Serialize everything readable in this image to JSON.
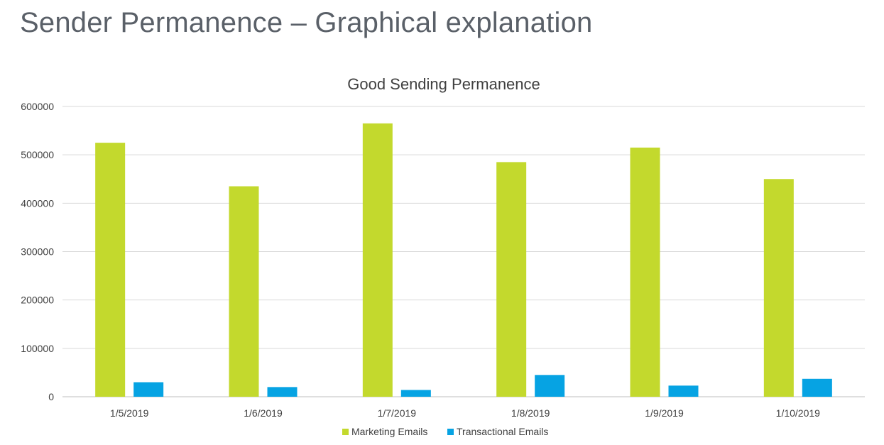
{
  "slide": {
    "title": "Sender Permanence – Graphical explanation"
  },
  "chart_data": {
    "type": "bar",
    "title": "Good Sending Permanence",
    "categories": [
      "1/5/2019",
      "1/6/2019",
      "1/7/2019",
      "1/8/2019",
      "1/9/2019",
      "1/10/2019"
    ],
    "series": [
      {
        "name": "Marketing Emails",
        "color": "#c3d92d",
        "values": [
          525000,
          435000,
          565000,
          485000,
          515000,
          450000
        ]
      },
      {
        "name": "Transactional Emails",
        "color": "#06a3e3",
        "values": [
          30000,
          20000,
          14000,
          45000,
          23000,
          37000
        ]
      }
    ],
    "ylim": [
      0,
      600000
    ],
    "yticks": [
      "0",
      "100000",
      "200000",
      "300000",
      "400000",
      "500000",
      "600000"
    ],
    "grid": true,
    "legend_position": "bottom"
  }
}
